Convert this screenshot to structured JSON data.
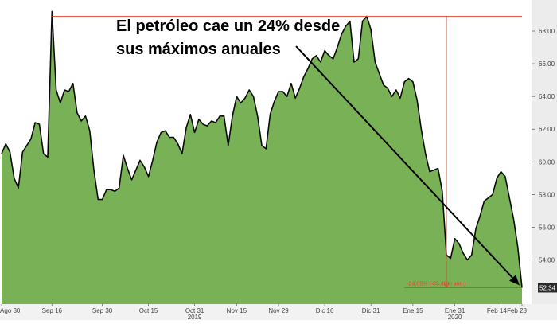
{
  "headline": {
    "line1": "El petróleo cae un 24% desde",
    "line2": "sus máximos anuales"
  },
  "chart_data": {
    "type": "area",
    "ylim": [
      51.3,
      69.9
    ],
    "yticks": [
      54,
      56,
      58,
      60,
      62,
      64,
      66,
      68
    ],
    "ytick_labels": [
      "54.00",
      "56.00",
      "58.00",
      "60.00",
      "62.00",
      "64.00",
      "66.00",
      "68.00"
    ],
    "x_tick_labels": [
      "Ago 30",
      "Sep 16",
      "Sep 30",
      "Oct 15",
      "Oct 31",
      "Nov 15",
      "Nov 29",
      "Dic 16",
      "Dic 31",
      "Ene 15",
      "Ene 31",
      "Feb 14",
      "Feb 28"
    ],
    "x_year_labels": [
      "2019",
      "2020"
    ],
    "y": [
      60.5,
      61.1,
      60.6,
      59.0,
      58.4,
      60.6,
      61.0,
      61.4,
      62.4,
      62.3,
      60.5,
      60.3,
      69.2,
      64.4,
      63.6,
      64.4,
      64.3,
      64.8,
      63.0,
      62.5,
      62.8,
      61.9,
      59.5,
      57.7,
      57.7,
      58.3,
      58.3,
      58.2,
      58.4,
      60.4,
      59.6,
      58.9,
      59.5,
      60.1,
      59.7,
      59.1,
      60.1,
      61.2,
      61.8,
      61.9,
      61.5,
      61.5,
      61.1,
      60.5,
      62.1,
      62.9,
      61.8,
      62.6,
      62.3,
      62.2,
      62.5,
      62.4,
      62.8,
      62.8,
      61.0,
      62.8,
      64.0,
      63.6,
      63.9,
      64.4,
      64.0,
      62.8,
      61.0,
      60.8,
      62.9,
      63.7,
      64.3,
      64.3,
      64.0,
      64.8,
      63.9,
      64.5,
      65.2,
      65.7,
      66.3,
      66.5,
      66.1,
      66.8,
      66.5,
      66.3,
      67.0,
      67.8,
      68.3,
      68.6,
      66.1,
      66.3,
      68.6,
      68.9,
      68.1,
      66.1,
      65.4,
      64.7,
      64.5,
      64.0,
      64.4,
      63.9,
      64.9,
      65.1,
      64.9,
      63.8,
      62.0,
      60.5,
      59.4,
      59.5,
      59.6,
      58.2,
      54.3,
      54.1,
      55.3,
      55.0,
      54.4,
      54.0,
      54.3,
      55.9,
      56.7,
      57.6,
      57.8,
      58.0,
      59.0,
      59.4,
      59.1,
      57.8,
      56.5,
      54.8,
      52.3
    ],
    "last_value_label": "52.34",
    "peak_value": 68.9,
    "change_annotation": "-24.05% (-85.49% ann.)",
    "colors": {
      "area_fill": "#79b256",
      "line": "#0b0b0b",
      "reference": "#e0452a",
      "arrow": "#000000",
      "last_label_bg": "#2a2a2a",
      "plot_bg": "#ffffff",
      "axis_bg": "#ececec"
    }
  }
}
